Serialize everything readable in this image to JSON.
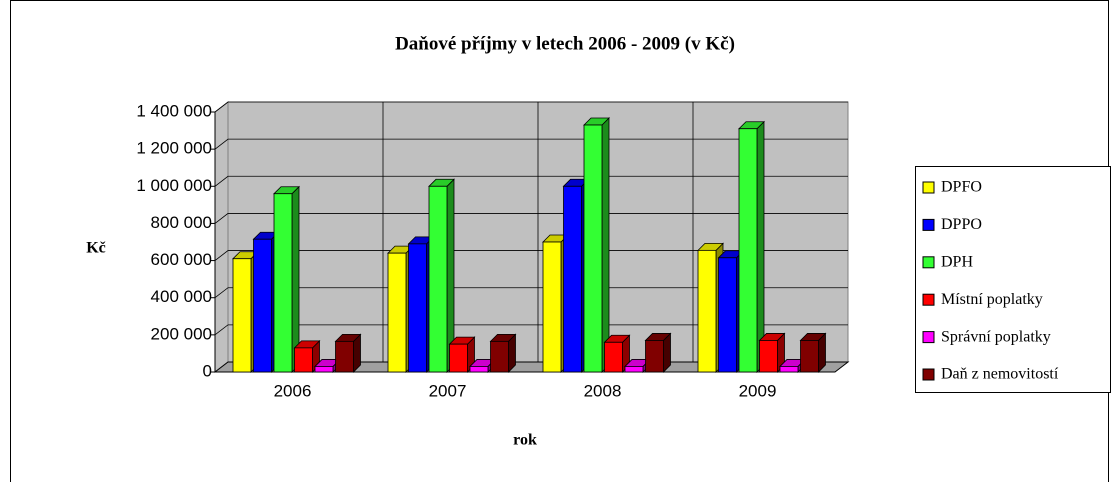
{
  "chart_data": {
    "type": "bar3d",
    "title": "Daňové příjmy v letech 2006 - 2009 (v Kč)",
    "y_label": "Kč",
    "x_label": "rok",
    "categories": [
      "2006",
      "2007",
      "2008",
      "2009"
    ],
    "series": [
      {
        "name": "DPFO",
        "color": "#ffff00",
        "values": [
          610000,
          640000,
          700000,
          655000
        ]
      },
      {
        "name": "DPPO",
        "color": "#0000ff",
        "values": [
          715000,
          690000,
          1000000,
          615000
        ]
      },
      {
        "name": "DPH",
        "color": "#33ff33",
        "values": [
          960000,
          1000000,
          1330000,
          1310000
        ]
      },
      {
        "name": "Místní poplatky",
        "color": "#ff0000",
        "values": [
          130000,
          150000,
          160000,
          170000
        ]
      },
      {
        "name": "Správní poplatky",
        "color": "#ff00ff",
        "values": [
          30000,
          30000,
          30000,
          30000
        ]
      },
      {
        "name": "Daň z nemovitostí",
        "color": "#800000",
        "values": [
          165000,
          165000,
          170000,
          170000
        ]
      }
    ],
    "ylim": [
      0,
      1400000
    ],
    "yticks": [
      0,
      {
        "value": 200000,
        "label": "200 000"
      },
      {
        "value": 400000,
        "label": "400 000"
      },
      {
        "value": 600000,
        "label": "600 000"
      },
      {
        "value": 800000,
        "label": "800 000"
      },
      {
        "value": 1000000,
        "label": "1 000 000"
      },
      {
        "value": 1200000,
        "label": "1 200 000"
      },
      {
        "value": 1400000,
        "label": "1 400 000"
      }
    ],
    "grid": true,
    "legend": "right"
  }
}
